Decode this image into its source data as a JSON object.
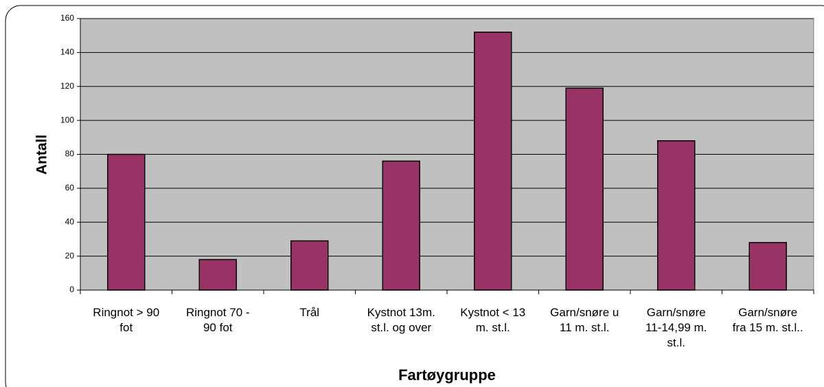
{
  "chart_data": {
    "type": "bar",
    "categories": [
      "Ringnot > 90 fot",
      "Ringnot 70 - 90 fot",
      "Trål",
      "Kystnot 13m. st.l. og over",
      "Kystnot < 13 m. st.l.",
      "Garn/snøre u 11 m. st.l.",
      "Garn/snøre 11-14,99 m. st.l.",
      "Garn/snøre fra 15 m. st.l.."
    ],
    "values": [
      80,
      18,
      29,
      76,
      152,
      119,
      88,
      28
    ],
    "color": "#993366",
    "xlabel": "Fartøygruppe",
    "ylabel": "Antall",
    "ylim": [
      0,
      160
    ],
    "yticks": [
      0,
      20,
      40,
      60,
      80,
      100,
      120,
      140,
      160
    ],
    "grid": true
  }
}
